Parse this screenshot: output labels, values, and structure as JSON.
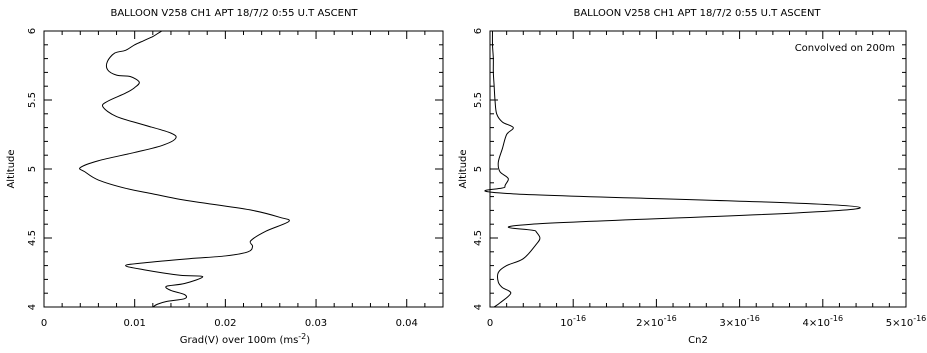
{
  "chart_data": [
    {
      "type": "line",
      "title": "BALLOON V258 CH1   APT 18/7/2  0:55 U.T        ASCENT",
      "xlabel": "Grad(V) over  100m (ms",
      "xlabel_exp": "-2",
      "xlabel_close": ")",
      "ylabel": "Altitude",
      "xlim": [
        0,
        0.044
      ],
      "ylim": [
        4,
        6
      ],
      "x_ticks": [
        {
          "value": 0,
          "label": "0"
        },
        {
          "value": 0.01,
          "label": "0.01"
        },
        {
          "value": 0.02,
          "label": "0.02"
        },
        {
          "value": 0.03,
          "label": "0.03"
        },
        {
          "value": 0.04,
          "label": "0.04"
        }
      ],
      "y_ticks": [
        {
          "value": 4,
          "label": "4"
        },
        {
          "value": 4.5,
          "label": "4.5"
        },
        {
          "value": 5,
          "label": "5"
        },
        {
          "value": 5.5,
          "label": "5.5"
        },
        {
          "value": 6,
          "label": "6"
        }
      ],
      "series": [
        {
          "points": [
            [
              0.012,
              4.0
            ],
            [
              0.0125,
              4.02
            ],
            [
              0.0135,
              4.04
            ],
            [
              0.0155,
              4.06
            ],
            [
              0.0155,
              4.09
            ],
            [
              0.014,
              4.12
            ],
            [
              0.0135,
              4.15
            ],
            [
              0.0155,
              4.17
            ],
            [
              0.0175,
              4.22
            ],
            [
              0.015,
              4.23
            ],
            [
              0.011,
              4.27
            ],
            [
              0.009,
              4.3
            ],
            [
              0.011,
              4.32
            ],
            [
              0.016,
              4.35
            ],
            [
              0.02,
              4.37
            ],
            [
              0.0225,
              4.4
            ],
            [
              0.023,
              4.44
            ],
            [
              0.0228,
              4.48
            ],
            [
              0.0245,
              4.55
            ],
            [
              0.027,
              4.62
            ],
            [
              0.026,
              4.65
            ],
            [
              0.023,
              4.7
            ],
            [
              0.018,
              4.75
            ],
            [
              0.015,
              4.78
            ],
            [
              0.012,
              4.82
            ],
            [
              0.009,
              4.86
            ],
            [
              0.006,
              4.92
            ],
            [
              0.0045,
              4.98
            ],
            [
              0.004,
              5.01
            ],
            [
              0.006,
              5.06
            ],
            [
              0.01,
              5.12
            ],
            [
              0.013,
              5.17
            ],
            [
              0.0145,
              5.22
            ],
            [
              0.014,
              5.26
            ],
            [
              0.011,
              5.32
            ],
            [
              0.008,
              5.38
            ],
            [
              0.0065,
              5.45
            ],
            [
              0.007,
              5.49
            ],
            [
              0.009,
              5.55
            ],
            [
              0.01,
              5.59
            ],
            [
              0.0105,
              5.63
            ],
            [
              0.0095,
              5.67
            ],
            [
              0.008,
              5.68
            ],
            [
              0.007,
              5.72
            ],
            [
              0.007,
              5.78
            ],
            [
              0.0078,
              5.84
            ],
            [
              0.009,
              5.86
            ],
            [
              0.01,
              5.9
            ],
            [
              0.011,
              5.93
            ],
            [
              0.012,
              5.96
            ],
            [
              0.0125,
              5.98
            ],
            [
              0.013,
              6.0
            ]
          ]
        }
      ]
    },
    {
      "type": "line",
      "title": "BALLOON V258 CH1   APT 18/7/2  0:55 U.T        ASCENT",
      "annotation": "Convolved on   200m",
      "xlabel": "Cn2",
      "ylabel": "Altitude",
      "xlim": [
        0,
        5e-16
      ],
      "ylim": [
        4,
        6
      ],
      "x_ticks": [
        {
          "value": 0,
          "label": "0"
        },
        {
          "value": 1e-16,
          "label": "10",
          "exp": "-16"
        },
        {
          "value": 2e-16,
          "label": "2×10",
          "exp": "-16"
        },
        {
          "value": 3e-16,
          "label": "3×10",
          "exp": "-16"
        },
        {
          "value": 4e-16,
          "label": "4×10",
          "exp": "-16"
        },
        {
          "value": 5e-16,
          "label": "5×10",
          "exp": "-16"
        }
      ],
      "y_ticks": [
        {
          "value": 4,
          "label": "4"
        },
        {
          "value": 4.5,
          "label": "4.5"
        },
        {
          "value": 5,
          "label": "5"
        },
        {
          "value": 5.5,
          "label": "5.5"
        },
        {
          "value": 6,
          "label": "6"
        }
      ],
      "series": [
        {
          "points": [
            [
              5e-18,
              4.0
            ],
            [
              1.2e-17,
              4.03
            ],
            [
              2.5e-17,
              4.1
            ],
            [
              1.5e-17,
              4.14
            ],
            [
              1e-17,
              4.18
            ],
            [
              1e-17,
              4.25
            ],
            [
              2e-17,
              4.3
            ],
            [
              4e-17,
              4.35
            ],
            [
              5.5e-17,
              4.45
            ],
            [
              6e-17,
              4.5
            ],
            [
              5.5e-17,
              4.55
            ],
            [
              5e-17,
              4.6
            ],
            [
              4.45e-16,
              4.72
            ],
            [
              2.8e-17,
              4.82
            ],
            [
              1.8e-17,
              4.87
            ],
            [
              2.2e-17,
              4.93
            ],
            [
              1.2e-17,
              4.98
            ],
            [
              1e-17,
              5.05
            ],
            [
              1.5e-17,
              5.15
            ],
            [
              2e-17,
              5.25
            ],
            [
              2.8e-17,
              5.3
            ],
            [
              1.5e-17,
              5.34
            ],
            [
              8e-18,
              5.4
            ],
            [
              6e-18,
              5.5
            ],
            [
              5e-18,
              5.6
            ],
            [
              4e-18,
              5.7
            ],
            [
              4e-18,
              5.8
            ],
            [
              3e-18,
              5.9
            ],
            [
              3e-18,
              6.0
            ]
          ]
        }
      ]
    }
  ]
}
